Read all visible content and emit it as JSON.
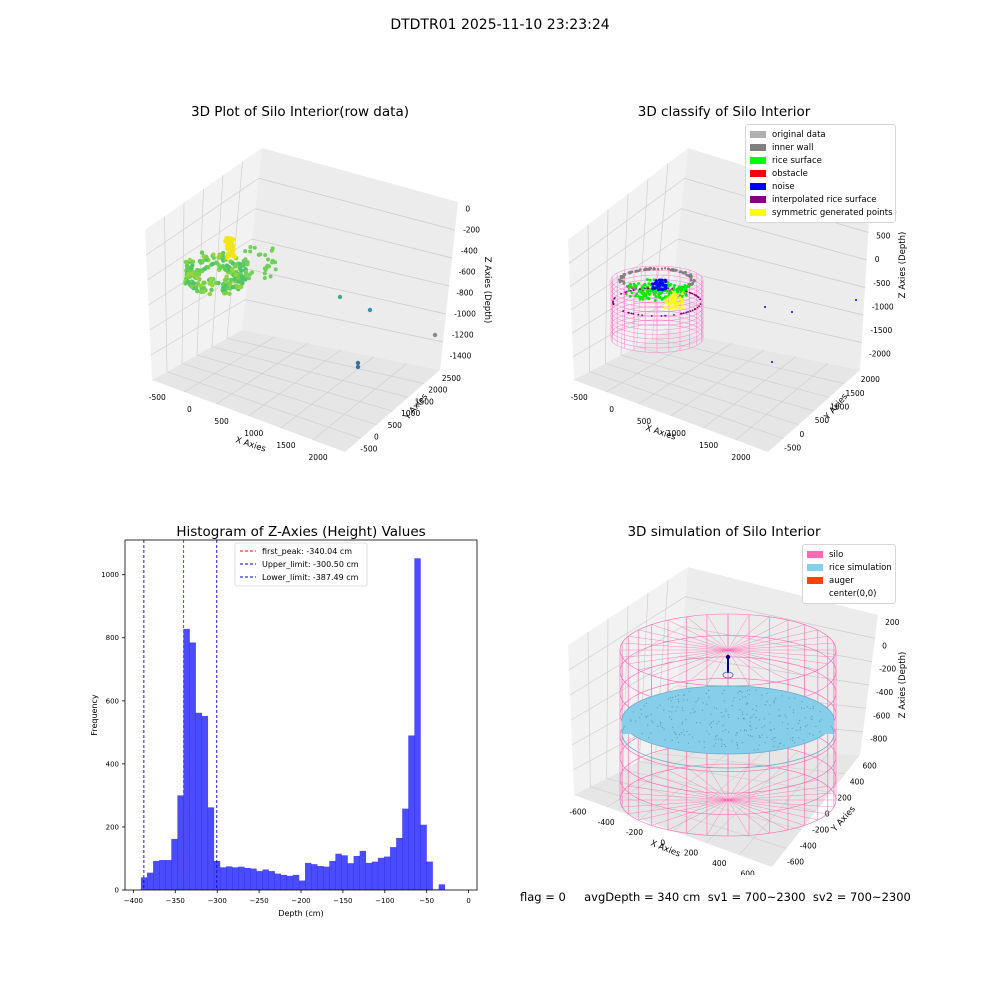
{
  "suptitle": "DTDTR01 2025-11-10 23:23:24",
  "panels": {
    "raw": {
      "title": "3D Plot of Silo Interior(row data)",
      "xlabel": "X Axies",
      "ylabel": "Y Axies",
      "zlabel": "Z Axies (Depth)",
      "xticks": [
        "-500",
        "0",
        "500",
        "1000",
        "1500",
        "2000"
      ],
      "yticks": [
        "-500",
        "0",
        "500",
        "1000",
        "1500",
        "2000",
        "2500"
      ],
      "zticks": [
        "0",
        "-200",
        "-400",
        "-600",
        "-800",
        "-1000",
        "-1200",
        "-1400"
      ]
    },
    "classify": {
      "title": "3D classify of Silo Interior",
      "xlabel": "X Axies",
      "ylabel": "Y Axies",
      "zlabel": "Z Axies (Depth)",
      "xticks": [
        "-500",
        "0",
        "500",
        "1000",
        "1500",
        "2000"
      ],
      "yticks": [
        "-500",
        "0",
        "500",
        "1000",
        "1500",
        "2000"
      ],
      "zticks": [
        "1000",
        "500",
        "0",
        "-500",
        "-1000",
        "-1500",
        "-2000"
      ],
      "legend": [
        {
          "label": "original data",
          "color": "#b0b0b0"
        },
        {
          "label": "inner wall",
          "color": "#808080"
        },
        {
          "label": "rice surface",
          "color": "#00ff00"
        },
        {
          "label": "obstacle",
          "color": "#ff0000"
        },
        {
          "label": "noise",
          "color": "#0000ff"
        },
        {
          "label": "interpolated rice surface",
          "color": "#800080"
        },
        {
          "label": "symmetric generated points",
          "color": "#ffff00"
        }
      ]
    },
    "simulation": {
      "title": "3D simulation of Silo Interior",
      "xlabel": "X Axies",
      "ylabel": "Y Axies",
      "zlabel": "Z Axies (Depth)",
      "xticks": [
        "-600",
        "-400",
        "-200",
        "0",
        "200",
        "400",
        "600"
      ],
      "yticks": [
        "-600",
        "-400",
        "-200",
        "0",
        "200",
        "400",
        "600"
      ],
      "zticks": [
        "200",
        "0",
        "-200",
        "-400",
        "-600",
        "-800"
      ],
      "legend": [
        {
          "label": "silo",
          "color": "#ff69b4"
        },
        {
          "label": "rice simulation",
          "color": "#87ceeb"
        },
        {
          "label": "auger",
          "color": "#ff4500"
        },
        {
          "label": "center(0,0)",
          "color": "#ffffff"
        }
      ]
    }
  },
  "chart_data": {
    "type": "bar",
    "title": "Histogram of Z-Axies (Height) Values",
    "xlabel": "Depth (cm)",
    "ylabel": "Frequency",
    "xlim": [
      -410,
      10
    ],
    "ylim": [
      0,
      1110
    ],
    "xticks": [
      -400,
      -350,
      -300,
      -250,
      -200,
      -150,
      -100,
      -50,
      0
    ],
    "yticks": [
      0,
      200,
      400,
      600,
      800,
      1000
    ],
    "bar_color": "#0000ff",
    "bin_width": 7.25,
    "bin_start": -391,
    "values": [
      40,
      55,
      92,
      95,
      95,
      162,
      300,
      828,
      785,
      562,
      552,
      262,
      92,
      72,
      75,
      72,
      74,
      70,
      68,
      60,
      65,
      60,
      52,
      48,
      45,
      48,
      30,
      86,
      82,
      76,
      74,
      92,
      115,
      110,
      85,
      108,
      124,
      86,
      90,
      102,
      106,
      136,
      165,
      258,
      490,
      1052,
      207,
      90,
      2,
      18
    ],
    "lines": [
      {
        "label": "first_peak: -340.04 cm",
        "x": -340.04,
        "color": "#ff0000"
      },
      {
        "label": "Upper_limit: -300.50 cm",
        "x": -300.5,
        "color": "#0000cc"
      },
      {
        "label": "Lower_limit: -387.49 cm",
        "x": -387.49,
        "color": "#0000cc"
      }
    ],
    "legend_position": "top-center"
  },
  "footer": "flag = 0     avgDepth = 340 cm  sv1 = 700~2300  sv2 = 700~2300"
}
